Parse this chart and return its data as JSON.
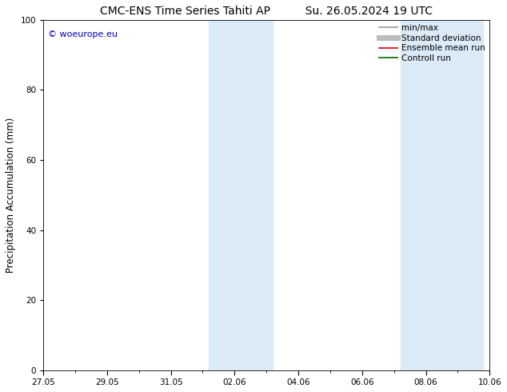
{
  "title_left": "CMC-ENS Time Series Tahiti AP",
  "title_right": "Su. 26.05.2024 19 UTC",
  "ylabel": "Precipitation Accumulation (mm)",
  "ylim": [
    0,
    100
  ],
  "yticks": [
    0,
    20,
    40,
    60,
    80,
    100
  ],
  "xtick_labels": [
    "27.05",
    "29.05",
    "31.05",
    "02.06",
    "04.06",
    "06.06",
    "08.06",
    "10.06"
  ],
  "xtick_positions": [
    0,
    2,
    4,
    6,
    8,
    10,
    12,
    14
  ],
  "xlim": [
    0,
    14
  ],
  "shaded_bands": [
    {
      "start": 5.2,
      "end": 7.2
    },
    {
      "start": 11.2,
      "end": 13.8
    }
  ],
  "shaded_color": "#daeaf7",
  "watermark_text": "© woeurope.eu",
  "watermark_color": "#0000bb",
  "legend_items": [
    {
      "label": "min/max",
      "color": "#999999",
      "lw": 1.2
    },
    {
      "label": "Standard deviation",
      "color": "#bbbbbb",
      "lw": 5
    },
    {
      "label": "Ensemble mean run",
      "color": "#dd0000",
      "lw": 1.2
    },
    {
      "label": "Controll run",
      "color": "#006600",
      "lw": 1.2
    }
  ],
  "bg_color": "#ffffff",
  "axes_bg": "#ffffff",
  "title_fontsize": 10,
  "tick_fontsize": 7.5,
  "ylabel_fontsize": 8.5,
  "legend_fontsize": 7.5,
  "watermark_fontsize": 8
}
